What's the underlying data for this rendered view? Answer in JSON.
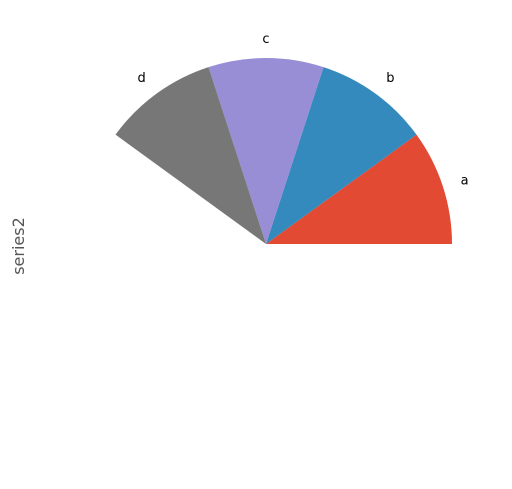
{
  "chart_data": {
    "type": "pie",
    "ylabel": "series2",
    "series_name": "series2",
    "categories": [
      "a",
      "b",
      "c",
      "d"
    ],
    "values": [
      36,
      36,
      36,
      36
    ],
    "total_angle_degrees": 144,
    "start_angle_degrees": 0,
    "colors": [
      "#E24A33",
      "#348ABD",
      "#988ED5",
      "#777777"
    ],
    "legend": "none",
    "grid": false
  }
}
